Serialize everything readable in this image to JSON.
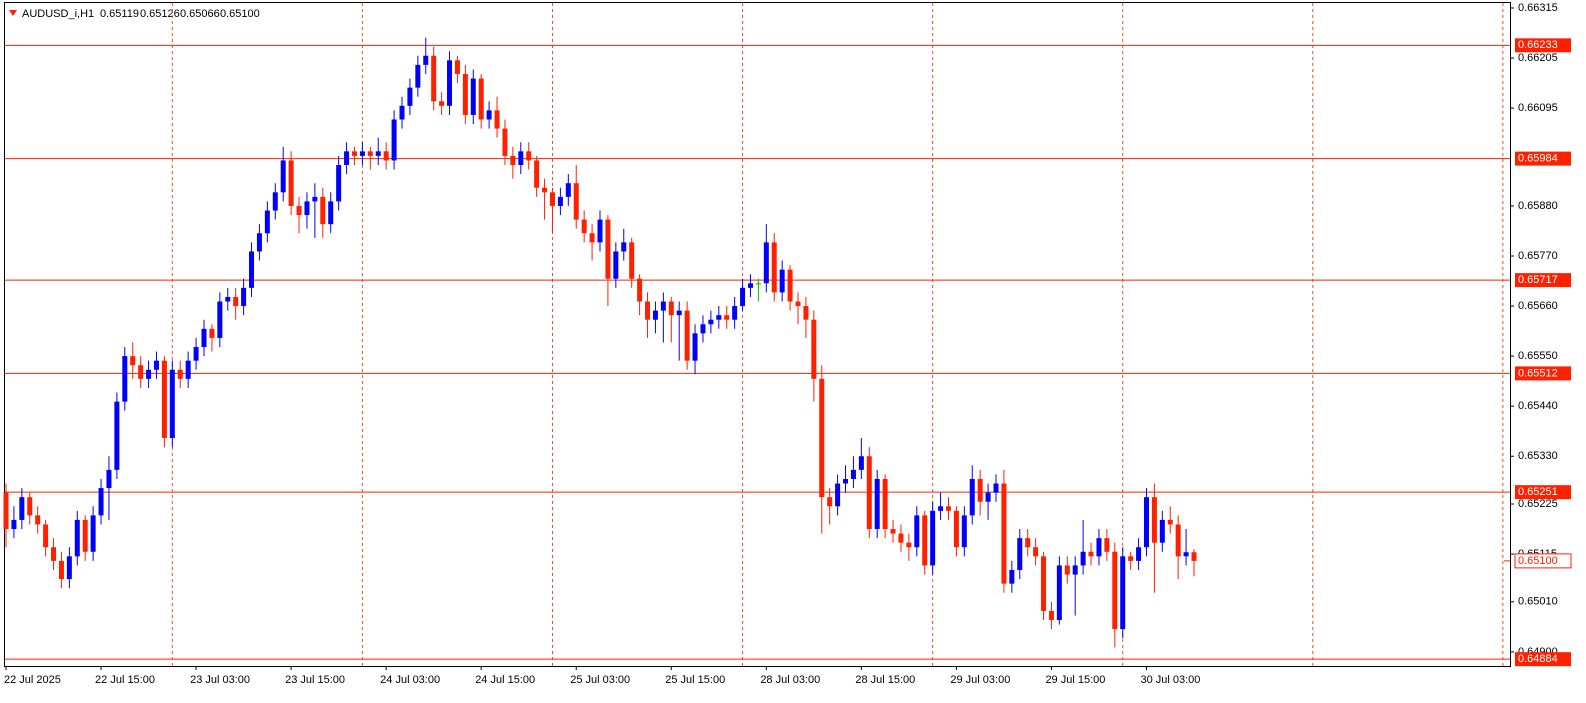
{
  "chart_data": {
    "type": "candlestick",
    "header": {
      "symbol": "AUDUSD_i,H1",
      "values": [
        "0.65119",
        "0.65126",
        "0.65066",
        "0.65100"
      ]
    },
    "bull_color": "#0000ff",
    "bear_color": "#ff2000",
    "doji_color": "#00c000",
    "level_color": "#ff2000",
    "ylim": [
      0.64869,
      0.66326
    ],
    "yticks": [
      0.66315,
      0.66205,
      0.66095,
      {
        "value": 0.6588,
        "label": "0.65880"
      },
      {
        "value": 0.6577,
        "label": "0.65770"
      },
      {
        "value": 0.6566,
        "label": "0.65660"
      },
      {
        "value": 0.6555,
        "label": "0.65550"
      },
      {
        "value": 0.6544,
        "label": "0.65440"
      },
      {
        "value": 0.6533,
        "label": "0.65330"
      },
      0.65225,
      0.65115,
      {
        "value": 0.6501,
        "label": "0.65010"
      },
      {
        "value": 0.649,
        "label": "0.64900"
      }
    ],
    "levels": [
      0.66233,
      0.65984,
      0.65717,
      0.65512,
      0.65251,
      0.64884
    ],
    "price_line": {
      "value": 0.651,
      "label": "0.65100"
    },
    "xticks": [
      "22 Jul 2025",
      "22 Jul 15:00",
      "23 Jul 03:00",
      "23 Jul 15:00",
      "24 Jul 03:00",
      "24 Jul 15:00",
      "25 Jul 03:00",
      "25 Jul 15:00",
      "28 Jul 03:00",
      "28 Jul 15:00",
      "29 Jul 03:00",
      "29 Jul 15:00",
      "30 Jul 03:00"
    ],
    "ohlc": [
      [
        0.6525,
        0.6527,
        0.6513,
        0.6517
      ],
      [
        0.6517,
        0.6522,
        0.6515,
        0.6519
      ],
      [
        0.6519,
        0.6526,
        0.6517,
        0.6524
      ],
      [
        0.6524,
        0.6525,
        0.6518,
        0.652
      ],
      [
        0.652,
        0.6522,
        0.6516,
        0.6518
      ],
      [
        0.6518,
        0.6519,
        0.6511,
        0.6513
      ],
      [
        0.6513,
        0.6515,
        0.6508,
        0.651
      ],
      [
        0.651,
        0.6512,
        0.6504,
        0.6506
      ],
      [
        0.6506,
        0.6513,
        0.6504,
        0.6511
      ],
      [
        0.6511,
        0.6521,
        0.6509,
        0.6519
      ],
      [
        0.6519,
        0.652,
        0.651,
        0.6512
      ],
      [
        0.6512,
        0.6522,
        0.651,
        0.652
      ],
      [
        0.652,
        0.6528,
        0.6518,
        0.6526
      ],
      [
        0.6526,
        0.6533,
        0.6519,
        0.653
      ],
      [
        0.653,
        0.6547,
        0.6528,
        0.6545
      ],
      [
        0.6545,
        0.6557,
        0.6543,
        0.6555
      ],
      [
        0.6555,
        0.6558,
        0.655,
        0.6553
      ],
      [
        0.6553,
        0.6555,
        0.6548,
        0.655
      ],
      [
        0.655,
        0.6554,
        0.6548,
        0.6552
      ],
      [
        0.6552,
        0.6556,
        0.655,
        0.6554
      ],
      [
        0.6554,
        0.6555,
        0.6535,
        0.6537
      ],
      [
        0.6537,
        0.6554,
        0.6535,
        0.6552
      ],
      [
        0.6552,
        0.6554,
        0.6548,
        0.655
      ],
      [
        0.655,
        0.6556,
        0.6548,
        0.6554
      ],
      [
        0.6554,
        0.6559,
        0.6552,
        0.6557
      ],
      [
        0.6557,
        0.6563,
        0.6555,
        0.6561
      ],
      [
        0.6561,
        0.6562,
        0.6556,
        0.6559
      ],
      [
        0.6559,
        0.6569,
        0.6557,
        0.6567
      ],
      [
        0.6567,
        0.657,
        0.6565,
        0.6568
      ],
      [
        0.6568,
        0.657,
        0.6563,
        0.6566
      ],
      [
        0.6566,
        0.6572,
        0.6564,
        0.657
      ],
      [
        0.657,
        0.658,
        0.6568,
        0.6578
      ],
      [
        0.6578,
        0.6584,
        0.6576,
        0.6582
      ],
      [
        0.6582,
        0.6589,
        0.658,
        0.6587
      ],
      [
        0.6587,
        0.6593,
        0.6585,
        0.6591
      ],
      [
        0.6591,
        0.6601,
        0.6589,
        0.6598
      ],
      [
        0.6598,
        0.66,
        0.6586,
        0.6588
      ],
      [
        0.6588,
        0.659,
        0.6582,
        0.6586
      ],
      [
        0.6586,
        0.6591,
        0.6583,
        0.6589
      ],
      [
        0.6589,
        0.6593,
        0.6581,
        0.659
      ],
      [
        0.659,
        0.6592,
        0.6581,
        0.6584
      ],
      [
        0.6584,
        0.6591,
        0.6582,
        0.6589
      ],
      [
        0.6589,
        0.6599,
        0.6587,
        0.6597
      ],
      [
        0.6597,
        0.6602,
        0.6595,
        0.66
      ],
      [
        0.66,
        0.6601,
        0.6597,
        0.6599
      ],
      [
        0.6599,
        0.6602,
        0.6597,
        0.66
      ],
      [
        0.66,
        0.6601,
        0.6596,
        0.6599
      ],
      [
        0.6599,
        0.6603,
        0.6597,
        0.66
      ],
      [
        0.66,
        0.6602,
        0.6596,
        0.6598
      ],
      [
        0.6598,
        0.6609,
        0.6596,
        0.6607
      ],
      [
        0.6607,
        0.6612,
        0.6605,
        0.661
      ],
      [
        0.661,
        0.6616,
        0.6608,
        0.6614
      ],
      [
        0.6614,
        0.6621,
        0.6612,
        0.6619
      ],
      [
        0.6619,
        0.6625,
        0.6617,
        0.6621
      ],
      [
        0.6621,
        0.6623,
        0.6609,
        0.6611
      ],
      [
        0.6611,
        0.6613,
        0.6608,
        0.661
      ],
      [
        0.661,
        0.6622,
        0.6608,
        0.662
      ],
      [
        0.662,
        0.6621,
        0.6615,
        0.6617
      ],
      [
        0.6617,
        0.6619,
        0.6606,
        0.6608
      ],
      [
        0.6608,
        0.6618,
        0.6606,
        0.6616
      ],
      [
        0.6616,
        0.6617,
        0.6605,
        0.6607
      ],
      [
        0.6607,
        0.6611,
        0.6605,
        0.6609
      ],
      [
        0.6609,
        0.6612,
        0.6603,
        0.6605
      ],
      [
        0.6605,
        0.6607,
        0.6597,
        0.6599
      ],
      [
        0.6599,
        0.6601,
        0.6594,
        0.6597
      ],
      [
        0.6597,
        0.6602,
        0.6595,
        0.66
      ],
      [
        0.66,
        0.6602,
        0.6596,
        0.6598
      ],
      [
        0.6598,
        0.6599,
        0.659,
        0.6592
      ],
      [
        0.6592,
        0.6594,
        0.6585,
        0.6591
      ],
      [
        0.6591,
        0.6592,
        0.6582,
        0.6588
      ],
      [
        0.6588,
        0.6592,
        0.6586,
        0.659
      ],
      [
        0.659,
        0.6595,
        0.6588,
        0.6593
      ],
      [
        0.6593,
        0.6597,
        0.6583,
        0.6585
      ],
      [
        0.6585,
        0.6587,
        0.658,
        0.6582
      ],
      [
        0.6582,
        0.6584,
        0.6576,
        0.658
      ],
      [
        0.658,
        0.6587,
        0.6578,
        0.6585
      ],
      [
        0.6585,
        0.6586,
        0.6566,
        0.6572
      ],
      [
        0.6572,
        0.658,
        0.657,
        0.6578
      ],
      [
        0.6578,
        0.6583,
        0.6576,
        0.658
      ],
      [
        0.658,
        0.6581,
        0.657,
        0.6572
      ],
      [
        0.6572,
        0.6573,
        0.6564,
        0.6567
      ],
      [
        0.6567,
        0.6569,
        0.6559,
        0.6563
      ],
      [
        0.6563,
        0.6567,
        0.656,
        0.6565
      ],
      [
        0.6565,
        0.6569,
        0.6558,
        0.6567
      ],
      [
        0.6567,
        0.6568,
        0.6558,
        0.6564
      ],
      [
        0.6564,
        0.6567,
        0.6554,
        0.6565
      ],
      [
        0.6565,
        0.6567,
        0.6552,
        0.6554
      ],
      [
        0.6554,
        0.6562,
        0.6551,
        0.656
      ],
      [
        0.656,
        0.6564,
        0.6558,
        0.6562
      ],
      [
        0.6562,
        0.6565,
        0.656,
        0.6563
      ],
      [
        0.6563,
        0.6566,
        0.6561,
        0.6564
      ],
      [
        0.6564,
        0.6566,
        0.6561,
        0.6563
      ],
      [
        0.6563,
        0.6568,
        0.6561,
        0.6566
      ],
      [
        0.6566,
        0.6572,
        0.6565,
        0.657
      ],
      [
        0.657,
        0.6573,
        0.6568,
        0.6571
      ],
      [
        0.6571,
        0.6572,
        0.6567,
        0.6571
      ],
      [
        0.6571,
        0.6584,
        0.6569,
        0.658
      ],
      [
        0.658,
        0.6582,
        0.6567,
        0.6569
      ],
      [
        0.6569,
        0.6576,
        0.6567,
        0.6574
      ],
      [
        0.6574,
        0.6575,
        0.6565,
        0.6567
      ],
      [
        0.6567,
        0.6569,
        0.6562,
        0.6566
      ],
      [
        0.6566,
        0.6568,
        0.6559,
        0.6563
      ],
      [
        0.6563,
        0.6565,
        0.6545,
        0.655
      ],
      [
        0.655,
        0.6553,
        0.6516,
        0.6524
      ],
      [
        0.6524,
        0.6526,
        0.6518,
        0.6522
      ],
      [
        0.6522,
        0.6529,
        0.652,
        0.6527
      ],
      [
        0.6527,
        0.6531,
        0.6525,
        0.6528
      ],
      [
        0.6528,
        0.6533,
        0.6526,
        0.653
      ],
      [
        0.653,
        0.6537,
        0.6528,
        0.6533
      ],
      [
        0.6533,
        0.6535,
        0.6515,
        0.6517
      ],
      [
        0.6517,
        0.653,
        0.6515,
        0.6528
      ],
      [
        0.6528,
        0.6529,
        0.6515,
        0.6517
      ],
      [
        0.6517,
        0.6519,
        0.6514,
        0.6516
      ],
      [
        0.6516,
        0.6518,
        0.6512,
        0.6514
      ],
      [
        0.6514,
        0.6516,
        0.651,
        0.6513
      ],
      [
        0.6513,
        0.6522,
        0.6511,
        0.652
      ],
      [
        0.652,
        0.6521,
        0.6507,
        0.6509
      ],
      [
        0.6509,
        0.6523,
        0.6507,
        0.6521
      ],
      [
        0.6521,
        0.6525,
        0.6519,
        0.6522
      ],
      [
        0.6522,
        0.6524,
        0.6519,
        0.6521
      ],
      [
        0.6521,
        0.6522,
        0.6511,
        0.6513
      ],
      [
        0.6513,
        0.6522,
        0.6511,
        0.652
      ],
      [
        0.652,
        0.6531,
        0.6518,
        0.6528
      ],
      [
        0.6528,
        0.653,
        0.652,
        0.6523
      ],
      [
        0.6523,
        0.6527,
        0.6519,
        0.6525
      ],
      [
        0.6525,
        0.6529,
        0.6523,
        0.6527
      ],
      [
        0.6527,
        0.653,
        0.6503,
        0.6505
      ],
      [
        0.6505,
        0.651,
        0.6503,
        0.6508
      ],
      [
        0.6508,
        0.6517,
        0.6506,
        0.6515
      ],
      [
        0.6515,
        0.6517,
        0.6511,
        0.6513
      ],
      [
        0.6513,
        0.6515,
        0.6509,
        0.6511
      ],
      [
        0.6511,
        0.6512,
        0.6497,
        0.6499
      ],
      [
        0.6499,
        0.6501,
        0.6495,
        0.6497
      ],
      [
        0.6497,
        0.6511,
        0.6496,
        0.6509
      ],
      [
        0.6509,
        0.6511,
        0.6505,
        0.6507
      ],
      [
        0.6507,
        0.6511,
        0.6498,
        0.6509
      ],
      [
        0.6509,
        0.6519,
        0.6507,
        0.6512
      ],
      [
        0.6512,
        0.6514,
        0.6509,
        0.6511
      ],
      [
        0.6511,
        0.6517,
        0.6509,
        0.6515
      ],
      [
        0.6515,
        0.6517,
        0.651,
        0.6512
      ],
      [
        0.6512,
        0.6514,
        0.6491,
        0.6495
      ],
      [
        0.6495,
        0.6513,
        0.6493,
        0.6511
      ],
      [
        0.6511,
        0.6512,
        0.6508,
        0.651
      ],
      [
        0.651,
        0.6515,
        0.6508,
        0.6513
      ],
      [
        0.6513,
        0.6526,
        0.6511,
        0.6524
      ],
      [
        0.6524,
        0.6527,
        0.6503,
        0.6514
      ],
      [
        0.6514,
        0.6521,
        0.6512,
        0.6519
      ],
      [
        0.6519,
        0.6522,
        0.6516,
        0.6518
      ],
      [
        0.6518,
        0.652,
        0.6506,
        0.6511
      ],
      [
        0.6511,
        0.6517,
        0.6509,
        0.65119
      ],
      [
        0.65119,
        0.65126,
        0.65066,
        0.651
      ]
    ]
  }
}
